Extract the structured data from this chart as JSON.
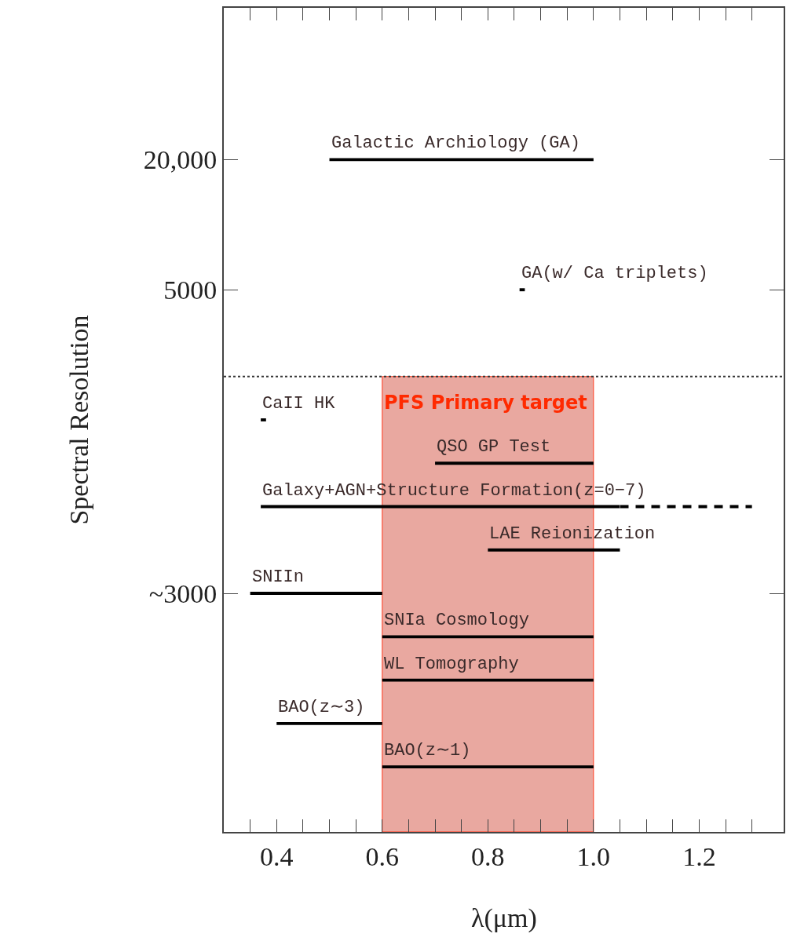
{
  "chart_data": {
    "type": "bar",
    "orientation": "horizontal",
    "xlabel": "λ(μm)",
    "ylabel": "Spectral Resolution",
    "categories": [
      null,
      null,
      null,
      "20,000",
      null,
      null,
      "5000",
      null,
      null,
      null,
      null,
      null,
      null,
      "~3000",
      null,
      null,
      null,
      null,
      null
    ],
    "xlim": [
      0.3,
      1.36
    ],
    "xticks": [
      {
        "value": 0.35,
        "label": null
      },
      0.4,
      {
        "value": 0.45,
        "label": null
      },
      {
        "value": 0.5,
        "label": null
      },
      {
        "value": 0.55,
        "label": null
      },
      0.6,
      {
        "value": 0.65,
        "label": null
      },
      {
        "value": 0.7,
        "label": null
      },
      {
        "value": 0.75,
        "label": null
      },
      0.8,
      {
        "value": 0.85,
        "label": null
      },
      {
        "value": 0.9,
        "label": null
      },
      {
        "value": 0.95,
        "label": null
      },
      {
        "value": 1.0,
        "label": "1.0"
      },
      {
        "value": 1.05,
        "label": null
      },
      {
        "value": 1.1,
        "label": null
      },
      {
        "value": 1.15,
        "label": null
      },
      1.2,
      {
        "value": 1.25,
        "label": null
      },
      {
        "value": 1.3,
        "label": null
      }
    ],
    "series": [
      {
        "name": "Galactic Archiology (GA)",
        "color": "#000000",
        "base": [
          null,
          null,
          null,
          0.5,
          null,
          null,
          null,
          null,
          null,
          null,
          null,
          null,
          null,
          null,
          null,
          null,
          null,
          null,
          null
        ],
        "values": [
          null,
          null,
          null,
          0.5,
          null,
          null,
          null,
          null,
          null,
          null,
          null,
          null,
          null,
          null,
          null,
          null,
          null,
          null,
          null
        ]
      },
      {
        "name": "GA(w/ Ca triplets)",
        "color": "#000000",
        "base": [
          null,
          null,
          null,
          null,
          null,
          null,
          0.86,
          null,
          null,
          null,
          null,
          null,
          null,
          null,
          null,
          null,
          null,
          null,
          null
        ],
        "values": [
          null,
          null,
          null,
          null,
          null,
          null,
          0.01,
          null,
          null,
          null,
          null,
          null,
          null,
          null,
          null,
          null,
          null,
          null,
          null
        ]
      },
      {
        "name": "CaII HK",
        "color": "#000000",
        "base": [
          null,
          null,
          null,
          null,
          null,
          null,
          null,
          null,
          null,
          0.37,
          null,
          null,
          null,
          null,
          null,
          null,
          null,
          null,
          null
        ],
        "values": [
          null,
          null,
          null,
          null,
          null,
          null,
          null,
          null,
          null,
          0.01,
          null,
          null,
          null,
          null,
          null,
          null,
          null,
          null,
          null
        ]
      },
      {
        "name": "QSO GP Test",
        "color": "#000000",
        "base": [
          null,
          null,
          null,
          null,
          null,
          null,
          null,
          null,
          null,
          null,
          0.7,
          null,
          null,
          null,
          null,
          null,
          null,
          null,
          null
        ],
        "values": [
          null,
          null,
          null,
          null,
          null,
          null,
          null,
          null,
          null,
          null,
          0.3,
          null,
          null,
          null,
          null,
          null,
          null,
          null,
          null
        ]
      },
      {
        "name": "Galaxy+AGN+Structure Formation(z=0−7)",
        "color": "#000000",
        "base": [
          null,
          null,
          null,
          null,
          null,
          null,
          null,
          null,
          null,
          null,
          null,
          0.37,
          null,
          null,
          null,
          null,
          null,
          null,
          null
        ],
        "values": [
          null,
          null,
          null,
          null,
          null,
          null,
          null,
          null,
          null,
          null,
          null,
          0.68,
          null,
          null,
          null,
          null,
          null,
          null,
          null
        ]
      },
      {
        "color": "#000000",
        "line_style": "dashed",
        "base": [
          null,
          null,
          null,
          null,
          null,
          null,
          null,
          null,
          null,
          null,
          null,
          1.05,
          null,
          null,
          null,
          null,
          null,
          null,
          null
        ],
        "values": [
          null,
          null,
          null,
          null,
          null,
          null,
          null,
          null,
          null,
          null,
          null,
          0.25,
          null,
          null,
          null,
          null,
          null,
          null,
          null
        ]
      },
      {
        "name": "LAE Reionization",
        "color": "#000000",
        "base": [
          null,
          null,
          null,
          null,
          null,
          null,
          null,
          null,
          null,
          null,
          null,
          null,
          0.8,
          null,
          null,
          null,
          null,
          null,
          null
        ],
        "values": [
          null,
          null,
          null,
          null,
          null,
          null,
          null,
          null,
          null,
          null,
          null,
          null,
          0.25,
          null,
          null,
          null,
          null,
          null,
          null
        ]
      },
      {
        "name": "SNIIn",
        "color": "#000000",
        "base": [
          null,
          null,
          null,
          null,
          null,
          null,
          null,
          null,
          null,
          null,
          null,
          null,
          null,
          0.35,
          null,
          null,
          null,
          null,
          null
        ],
        "values": [
          null,
          null,
          null,
          null,
          null,
          null,
          null,
          null,
          null,
          null,
          null,
          null,
          null,
          0.25,
          null,
          null,
          null,
          null,
          null
        ]
      },
      {
        "name": "SNIa Cosmology",
        "color": "#000000",
        "base": [
          null,
          null,
          null,
          null,
          null,
          null,
          null,
          null,
          null,
          null,
          null,
          null,
          null,
          null,
          0.6,
          null,
          null,
          null,
          null
        ],
        "values": [
          null,
          null,
          null,
          null,
          null,
          null,
          null,
          null,
          null,
          null,
          null,
          null,
          null,
          null,
          0.4,
          null,
          null,
          null,
          null
        ]
      },
      {
        "name": "WL Tomography",
        "color": "#000000",
        "base": [
          null,
          null,
          null,
          null,
          null,
          null,
          null,
          null,
          null,
          null,
          null,
          null,
          null,
          null,
          null,
          0.6,
          null,
          null,
          null
        ],
        "values": [
          null,
          null,
          null,
          null,
          null,
          null,
          null,
          null,
          null,
          null,
          null,
          null,
          null,
          null,
          null,
          0.4,
          null,
          null,
          null
        ]
      },
      {
        "name": "BAO(z∼3)",
        "color": "#000000",
        "base": [
          null,
          null,
          null,
          null,
          null,
          null,
          null,
          null,
          null,
          null,
          null,
          null,
          null,
          null,
          null,
          null,
          0.4,
          null,
          null
        ],
        "values": [
          null,
          null,
          null,
          null,
          null,
          null,
          null,
          null,
          null,
          null,
          null,
          null,
          null,
          null,
          null,
          null,
          0.2,
          null,
          null
        ]
      },
      {
        "name": "BAO(z∼1)",
        "color": "#000000",
        "base": [
          null,
          null,
          null,
          null,
          null,
          null,
          null,
          null,
          null,
          null,
          null,
          null,
          null,
          null,
          null,
          null,
          null,
          0.6,
          null
        ],
        "values": [
          null,
          null,
          null,
          null,
          null,
          null,
          null,
          null,
          null,
          null,
          null,
          null,
          null,
          null,
          null,
          null,
          null,
          0.4,
          null
        ]
      }
    ],
    "bands": [
      {
        "axis": "x",
        "from": 0.6,
        "to": 1.0,
        "label": "PFS Primary target",
        "color": "#e9a8a0"
      }
    ]
  }
}
